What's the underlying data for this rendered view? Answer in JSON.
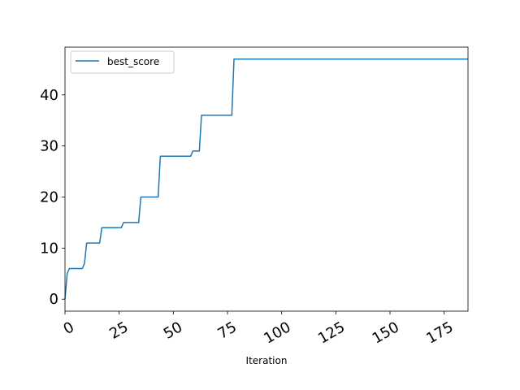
{
  "chart_data": {
    "type": "line",
    "title": "",
    "xlabel": "Iteration",
    "ylabel": "",
    "xlim": [
      0,
      186
    ],
    "ylim": [
      -2.35,
      49.35
    ],
    "xticks": [
      0,
      25,
      50,
      75,
      100,
      125,
      150,
      175
    ],
    "yticks": [
      0,
      10,
      20,
      30,
      40
    ],
    "grid": false,
    "legend_position": "upper-left",
    "series": [
      {
        "name": "best_score",
        "color": "#1f77b4",
        "x": [
          0,
          1,
          2,
          3,
          4,
          5,
          6,
          7,
          8,
          9,
          10,
          11,
          12,
          13,
          14,
          15,
          16,
          17,
          18,
          19,
          20,
          21,
          22,
          23,
          24,
          25,
          26,
          27,
          28,
          29,
          30,
          31,
          32,
          33,
          34,
          35,
          36,
          37,
          38,
          39,
          40,
          41,
          42,
          43,
          44,
          45,
          46,
          47,
          48,
          49,
          50,
          51,
          52,
          53,
          54,
          55,
          56,
          57,
          58,
          59,
          60,
          61,
          62,
          63,
          64,
          65,
          66,
          67,
          68,
          69,
          70,
          71,
          72,
          73,
          74,
          75,
          76,
          77,
          78,
          186
        ],
        "values": [
          0,
          5,
          6,
          6,
          6,
          6,
          6,
          6,
          6,
          7,
          11,
          11,
          11,
          11,
          11,
          11,
          11,
          14,
          14,
          14,
          14,
          14,
          14,
          14,
          14,
          14,
          14,
          15,
          15,
          15,
          15,
          15,
          15,
          15,
          15,
          20,
          20,
          20,
          20,
          20,
          20,
          20,
          20,
          20,
          28,
          28,
          28,
          28,
          28,
          28,
          28,
          28,
          28,
          28,
          28,
          28,
          28,
          28,
          28,
          29,
          29,
          29,
          29,
          36,
          36,
          36,
          36,
          36,
          36,
          36,
          36,
          36,
          36,
          36,
          36,
          36,
          36,
          36,
          47,
          47
        ]
      }
    ]
  }
}
